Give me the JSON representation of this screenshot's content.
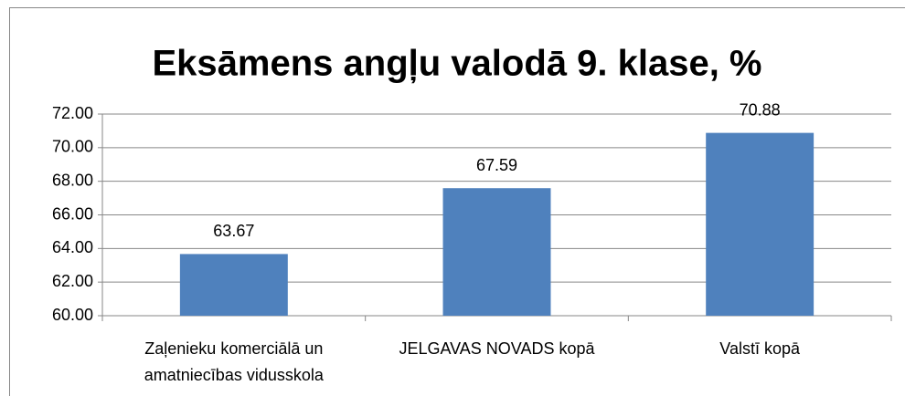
{
  "chart_data": {
    "type": "bar",
    "title": "Eksāmens angļu valodā 9. klase, %",
    "categories": [
      "Zaļenieku komerciālā un amatniecības vidusskola",
      "JELGAVAS NOVADS kopā",
      "Valstī kopā"
    ],
    "values": [
      63.67,
      67.59,
      70.88
    ],
    "color": "#4f81bd",
    "ylim": [
      60,
      72
    ],
    "yticks": [
      {
        "value": 60,
        "label": "60.00"
      },
      {
        "value": 62,
        "label": "62.00"
      },
      {
        "value": 64,
        "label": "64.00"
      },
      {
        "value": 66,
        "label": "66.00"
      },
      {
        "value": 68,
        "label": "68.00"
      },
      {
        "value": 70,
        "label": "70.00"
      },
      {
        "value": 72,
        "label": "72.00"
      }
    ],
    "grid": true
  }
}
